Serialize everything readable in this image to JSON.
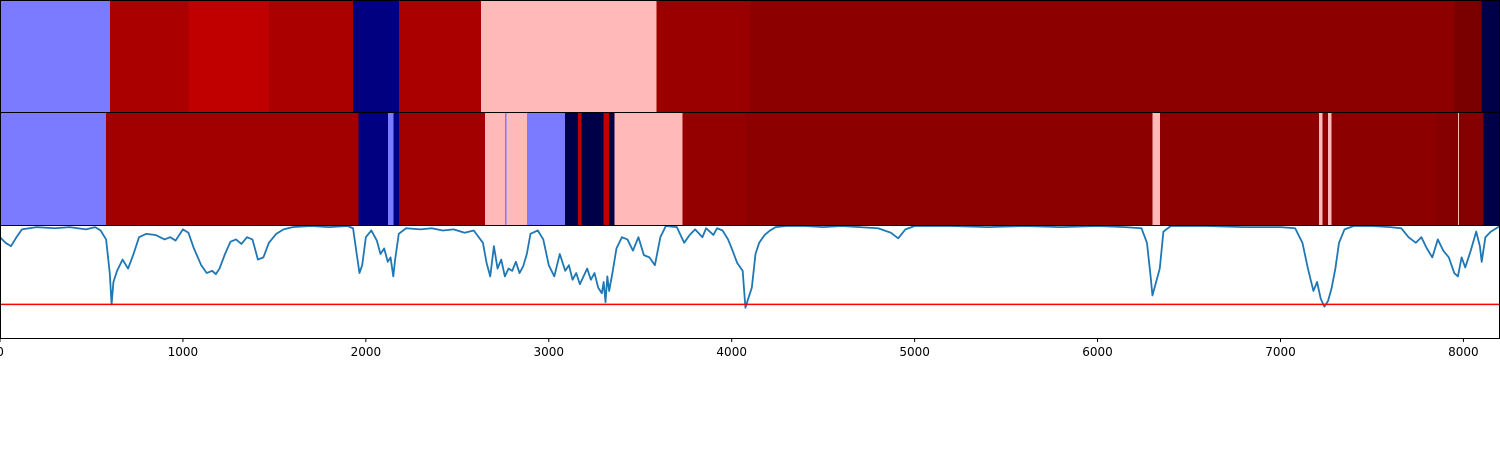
{
  "chart_data": {
    "type": "segmentation-heatmap-with-line",
    "xlim": [
      0,
      8200
    ],
    "x_ticks": [
      0,
      1000,
      2000,
      3000,
      4000,
      5000,
      6000,
      7000,
      8000
    ],
    "x_tick_labels": [
      "0",
      "1000",
      "2000",
      "3000",
      "4000",
      "5000",
      "6000",
      "7000",
      "8000"
    ],
    "colors": {
      "light-blue": "#7b7bff",
      "navy": "#000080",
      "dark-navy": "#000048",
      "pink": "#ffb9b9",
      "red-bright": "#c00000",
      "red-1": "#aa0000",
      "red-2": "#a20000",
      "red-3": "#9a0000",
      "red-4": "#940000",
      "red-5": "#8c0000",
      "red-6": "#850000",
      "red-7": "#7a0000",
      "line": "#1f77b4",
      "threshold": "#ff0000"
    },
    "strips": [
      {
        "segments": [
          {
            "start": 0,
            "end": 600,
            "color": "light-blue"
          },
          {
            "start": 600,
            "end": 1030,
            "color": "red-1"
          },
          {
            "start": 1030,
            "end": 1470,
            "color": "red-bright"
          },
          {
            "start": 1470,
            "end": 1930,
            "color": "red-1"
          },
          {
            "start": 1930,
            "end": 2180,
            "color": "navy"
          },
          {
            "start": 2180,
            "end": 2630,
            "color": "red-1"
          },
          {
            "start": 2630,
            "end": 3590,
            "color": "pink"
          },
          {
            "start": 3590,
            "end": 4100,
            "color": "red-3"
          },
          {
            "start": 4100,
            "end": 7950,
            "color": "red-5"
          },
          {
            "start": 7950,
            "end": 8100,
            "color": "red-7"
          },
          {
            "start": 8100,
            "end": 8200,
            "color": "dark-navy"
          }
        ]
      },
      {
        "segments": [
          {
            "start": 0,
            "end": 580,
            "color": "light-blue"
          },
          {
            "start": 580,
            "end": 1960,
            "color": "red-2"
          },
          {
            "start": 1960,
            "end": 2120,
            "color": "navy"
          },
          {
            "start": 2120,
            "end": 2150,
            "color": "light-blue"
          },
          {
            "start": 2150,
            "end": 2180,
            "color": "navy"
          },
          {
            "start": 2180,
            "end": 2650,
            "color": "red-2"
          },
          {
            "start": 2650,
            "end": 2760,
            "color": "pink"
          },
          {
            "start": 2760,
            "end": 2770,
            "color": "light-blue"
          },
          {
            "start": 2770,
            "end": 2880,
            "color": "pink"
          },
          {
            "start": 2880,
            "end": 3090,
            "color": "light-blue"
          },
          {
            "start": 3090,
            "end": 3160,
            "color": "dark-navy"
          },
          {
            "start": 3160,
            "end": 3180,
            "color": "red-bright"
          },
          {
            "start": 3180,
            "end": 3300,
            "color": "dark-navy"
          },
          {
            "start": 3300,
            "end": 3330,
            "color": "red-bright"
          },
          {
            "start": 3330,
            "end": 3360,
            "color": "dark-navy"
          },
          {
            "start": 3360,
            "end": 3730,
            "color": "pink"
          },
          {
            "start": 3730,
            "end": 4080,
            "color": "red-4"
          },
          {
            "start": 4080,
            "end": 6300,
            "color": "red-5"
          },
          {
            "start": 6300,
            "end": 6340,
            "color": "pink"
          },
          {
            "start": 6340,
            "end": 7210,
            "color": "red-5"
          },
          {
            "start": 7210,
            "end": 7230,
            "color": "pink"
          },
          {
            "start": 7230,
            "end": 7260,
            "color": "red-5"
          },
          {
            "start": 7260,
            "end": 7280,
            "color": "pink"
          },
          {
            "start": 7280,
            "end": 7850,
            "color": "red-5"
          },
          {
            "start": 7850,
            "end": 7970,
            "color": "red-6"
          },
          {
            "start": 7970,
            "end": 7975,
            "color": "pink"
          },
          {
            "start": 7975,
            "end": 8110,
            "color": "red-6"
          },
          {
            "start": 8110,
            "end": 8200,
            "color": "dark-navy"
          }
        ]
      }
    ],
    "line_ylim": [
      0,
      1
    ],
    "threshold": 0.3,
    "line_series": [
      [
        0,
        0.9
      ],
      [
        30,
        0.85
      ],
      [
        60,
        0.82
      ],
      [
        90,
        0.9
      ],
      [
        120,
        0.97
      ],
      [
        200,
        0.99
      ],
      [
        300,
        0.98
      ],
      [
        380,
        0.99
      ],
      [
        470,
        0.97
      ],
      [
        520,
        0.99
      ],
      [
        550,
        0.96
      ],
      [
        580,
        0.88
      ],
      [
        600,
        0.58
      ],
      [
        610,
        0.3
      ],
      [
        620,
        0.5
      ],
      [
        640,
        0.6
      ],
      [
        670,
        0.7
      ],
      [
        700,
        0.62
      ],
      [
        730,
        0.75
      ],
      [
        760,
        0.9
      ],
      [
        800,
        0.93
      ],
      [
        850,
        0.92
      ],
      [
        900,
        0.88
      ],
      [
        930,
        0.9
      ],
      [
        960,
        0.87
      ],
      [
        1000,
        0.97
      ],
      [
        1030,
        0.94
      ],
      [
        1060,
        0.8
      ],
      [
        1100,
        0.65
      ],
      [
        1130,
        0.58
      ],
      [
        1160,
        0.6
      ],
      [
        1180,
        0.57
      ],
      [
        1200,
        0.62
      ],
      [
        1230,
        0.75
      ],
      [
        1260,
        0.86
      ],
      [
        1290,
        0.88
      ],
      [
        1320,
        0.84
      ],
      [
        1350,
        0.9
      ],
      [
        1380,
        0.88
      ],
      [
        1410,
        0.7
      ],
      [
        1440,
        0.72
      ],
      [
        1470,
        0.85
      ],
      [
        1510,
        0.93
      ],
      [
        1550,
        0.97
      ],
      [
        1600,
        0.99
      ],
      [
        1700,
        1.0
      ],
      [
        1800,
        0.99
      ],
      [
        1900,
        1.0
      ],
      [
        1930,
        0.98
      ],
      [
        1950,
        0.75
      ],
      [
        1965,
        0.58
      ],
      [
        1980,
        0.65
      ],
      [
        2000,
        0.9
      ],
      [
        2030,
        0.96
      ],
      [
        2060,
        0.87
      ],
      [
        2080,
        0.75
      ],
      [
        2100,
        0.8
      ],
      [
        2120,
        0.68
      ],
      [
        2135,
        0.72
      ],
      [
        2150,
        0.55
      ],
      [
        2160,
        0.7
      ],
      [
        2180,
        0.93
      ],
      [
        2220,
        0.98
      ],
      [
        2300,
        0.97
      ],
      [
        2360,
        0.98
      ],
      [
        2420,
        0.96
      ],
      [
        2480,
        0.97
      ],
      [
        2540,
        0.94
      ],
      [
        2590,
        0.96
      ],
      [
        2640,
        0.85
      ],
      [
        2660,
        0.67
      ],
      [
        2680,
        0.55
      ],
      [
        2700,
        0.82
      ],
      [
        2720,
        0.62
      ],
      [
        2740,
        0.7
      ],
      [
        2760,
        0.55
      ],
      [
        2780,
        0.62
      ],
      [
        2800,
        0.6
      ],
      [
        2820,
        0.68
      ],
      [
        2840,
        0.58
      ],
      [
        2860,
        0.64
      ],
      [
        2880,
        0.75
      ],
      [
        2900,
        0.93
      ],
      [
        2940,
        0.96
      ],
      [
        2970,
        0.88
      ],
      [
        3000,
        0.65
      ],
      [
        3030,
        0.55
      ],
      [
        3060,
        0.75
      ],
      [
        3090,
        0.6
      ],
      [
        3110,
        0.65
      ],
      [
        3130,
        0.52
      ],
      [
        3150,
        0.58
      ],
      [
        3170,
        0.48
      ],
      [
        3190,
        0.55
      ],
      [
        3210,
        0.62
      ],
      [
        3230,
        0.52
      ],
      [
        3250,
        0.58
      ],
      [
        3270,
        0.45
      ],
      [
        3290,
        0.4
      ],
      [
        3300,
        0.5
      ],
      [
        3310,
        0.32
      ],
      [
        3320,
        0.55
      ],
      [
        3330,
        0.42
      ],
      [
        3350,
        0.6
      ],
      [
        3370,
        0.8
      ],
      [
        3400,
        0.9
      ],
      [
        3430,
        0.88
      ],
      [
        3460,
        0.78
      ],
      [
        3490,
        0.9
      ],
      [
        3520,
        0.74
      ],
      [
        3550,
        0.72
      ],
      [
        3580,
        0.65
      ],
      [
        3610,
        0.9
      ],
      [
        3640,
        1.0
      ],
      [
        3700,
        0.99
      ],
      [
        3740,
        0.85
      ],
      [
        3770,
        0.92
      ],
      [
        3800,
        0.97
      ],
      [
        3840,
        0.9
      ],
      [
        3860,
        0.98
      ],
      [
        3880,
        0.95
      ],
      [
        3900,
        0.92
      ],
      [
        3920,
        0.98
      ],
      [
        3950,
        0.96
      ],
      [
        3980,
        0.88
      ],
      [
        4000,
        0.8
      ],
      [
        4030,
        0.67
      ],
      [
        4060,
        0.6
      ],
      [
        4075,
        0.27
      ],
      [
        4090,
        0.35
      ],
      [
        4110,
        0.45
      ],
      [
        4130,
        0.75
      ],
      [
        4150,
        0.85
      ],
      [
        4180,
        0.92
      ],
      [
        4210,
        0.96
      ],
      [
        4240,
        0.99
      ],
      [
        4300,
        1.0
      ],
      [
        4400,
        1.0
      ],
      [
        4500,
        0.99
      ],
      [
        4600,
        1.0
      ],
      [
        4700,
        0.99
      ],
      [
        4800,
        0.98
      ],
      [
        4870,
        0.94
      ],
      [
        4910,
        0.89
      ],
      [
        4950,
        0.97
      ],
      [
        5000,
        1.0
      ],
      [
        5200,
        1.0
      ],
      [
        5400,
        0.99
      ],
      [
        5600,
        1.0
      ],
      [
        5800,
        0.99
      ],
      [
        6000,
        1.0
      ],
      [
        6150,
        0.99
      ],
      [
        6240,
        0.98
      ],
      [
        6270,
        0.85
      ],
      [
        6290,
        0.55
      ],
      [
        6300,
        0.38
      ],
      [
        6320,
        0.5
      ],
      [
        6340,
        0.62
      ],
      [
        6360,
        0.95
      ],
      [
        6400,
        1.0
      ],
      [
        6600,
        1.0
      ],
      [
        6800,
        0.99
      ],
      [
        7000,
        0.99
      ],
      [
        7080,
        0.98
      ],
      [
        7120,
        0.85
      ],
      [
        7150,
        0.62
      ],
      [
        7180,
        0.42
      ],
      [
        7200,
        0.5
      ],
      [
        7220,
        0.35
      ],
      [
        7240,
        0.28
      ],
      [
        7260,
        0.33
      ],
      [
        7280,
        0.45
      ],
      [
        7300,
        0.62
      ],
      [
        7320,
        0.85
      ],
      [
        7350,
        0.97
      ],
      [
        7400,
        1.0
      ],
      [
        7500,
        1.0
      ],
      [
        7600,
        0.99
      ],
      [
        7660,
        0.98
      ],
      [
        7700,
        0.9
      ],
      [
        7740,
        0.85
      ],
      [
        7770,
        0.9
      ],
      [
        7800,
        0.8
      ],
      [
        7830,
        0.72
      ],
      [
        7860,
        0.88
      ],
      [
        7890,
        0.78
      ],
      [
        7920,
        0.72
      ],
      [
        7950,
        0.58
      ],
      [
        7970,
        0.55
      ],
      [
        7990,
        0.72
      ],
      [
        8010,
        0.63
      ],
      [
        8040,
        0.78
      ],
      [
        8070,
        0.95
      ],
      [
        8090,
        0.82
      ],
      [
        8100,
        0.68
      ],
      [
        8120,
        0.9
      ],
      [
        8150,
        0.95
      ],
      [
        8180,
        0.98
      ],
      [
        8200,
        1.0
      ]
    ]
  }
}
